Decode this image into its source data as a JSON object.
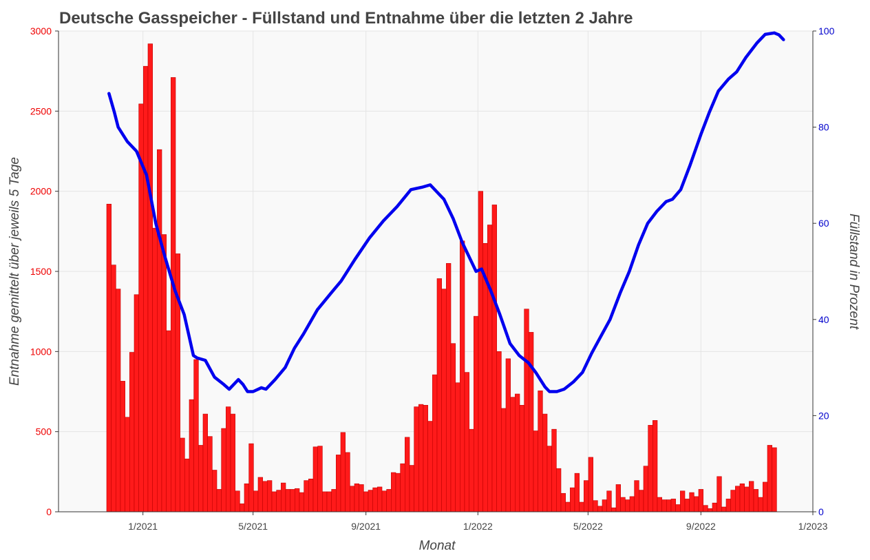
{
  "chart_data": {
    "type": "bar+line",
    "title": "Deutsche Gasspeicher - Füllstand und Entnahme über die letzten 2 Jahre",
    "xlabel": "Monat",
    "ylabel_left": "Entnahme gemittelt über jeweils 5 Tage",
    "ylabel_right": "Füllstand in Prozent",
    "x_range": [
      "2020-10-01",
      "2023-01-01"
    ],
    "x_ticks": [
      "1/2021",
      "5/2021",
      "9/2021",
      "1/2022",
      "5/2022",
      "9/2022",
      "1/2023"
    ],
    "ylim_left": [
      0,
      3000
    ],
    "y_ticks_left": [
      "0",
      "500",
      "1000",
      "1500",
      "2000",
      "2500",
      "3000"
    ],
    "ylim_right": [
      0,
      100
    ],
    "y_ticks_right": [
      "0",
      "20",
      "40",
      "60",
      "80",
      "100"
    ],
    "grid": true,
    "colors": {
      "bars": "#ff1a1a",
      "line": "#0000ee",
      "left_axis": "#ee0000",
      "right_axis": "#0000cc",
      "plot_bg": "#f9f9f9",
      "grid": "#e4e4e4",
      "text": "#444444"
    },
    "bar_series": {
      "start_date": "2020-11-25",
      "period_days": 5,
      "values": [
        1920,
        1540,
        1390,
        815,
        590,
        995,
        1355,
        2545,
        2780,
        2920,
        1770,
        2260,
        1730,
        1130,
        2710,
        1610,
        460,
        330,
        700,
        950,
        415,
        610,
        470,
        260,
        140,
        520,
        655,
        610,
        130,
        50,
        175,
        425,
        130,
        215,
        190,
        195,
        125,
        135,
        180,
        140,
        140,
        145,
        120,
        195,
        205,
        405,
        410,
        125,
        125,
        140,
        355,
        495,
        370,
        160,
        175,
        170,
        125,
        135,
        150,
        155,
        130,
        140,
        245,
        240,
        300,
        465,
        290,
        655,
        670,
        665,
        565,
        855,
        1455,
        1390,
        1550,
        1050,
        805,
        1690,
        870,
        515,
        1220,
        2000,
        1675,
        1790,
        1915,
        1000,
        645,
        955,
        715,
        735,
        665,
        1265,
        1120,
        505,
        755,
        610,
        410,
        515,
        270,
        115,
        60,
        150,
        240,
        60,
        195,
        340,
        70,
        35,
        75,
        130,
        25,
        170,
        90,
        75,
        95,
        195,
        135,
        285,
        540,
        570,
        90,
        75,
        75,
        80,
        45,
        130,
        80,
        120,
        95,
        140,
        40,
        20,
        55,
        220,
        30,
        80,
        135,
        160,
        175,
        155,
        190,
        140,
        90,
        185,
        415,
        400
      ]
    },
    "line_series": {
      "points": [
        [
          "2020-11-25",
          87
        ],
        [
          "2020-12-01",
          83
        ],
        [
          "2020-12-05",
          80
        ],
        [
          "2020-12-15",
          77
        ],
        [
          "2020-12-25",
          75
        ],
        [
          "2021-01-05",
          70
        ],
        [
          "2021-01-15",
          60
        ],
        [
          "2021-01-25",
          53
        ],
        [
          "2021-02-05",
          46
        ],
        [
          "2021-02-15",
          41
        ],
        [
          "2021-02-25",
          32.5
        ],
        [
          "2021-03-01",
          32
        ],
        [
          "2021-03-10",
          31.5
        ],
        [
          "2021-03-20",
          28
        ],
        [
          "2021-03-30",
          26.5
        ],
        [
          "2021-04-05",
          25.5
        ],
        [
          "2021-04-15",
          27.5
        ],
        [
          "2021-04-20",
          26.5
        ],
        [
          "2021-04-25",
          25
        ],
        [
          "2021-05-01",
          25
        ],
        [
          "2021-05-10",
          25.8
        ],
        [
          "2021-05-15",
          25.5
        ],
        [
          "2021-05-25",
          27.5
        ],
        [
          "2021-06-05",
          30
        ],
        [
          "2021-06-15",
          34
        ],
        [
          "2021-06-25",
          37
        ],
        [
          "2021-07-10",
          42
        ],
        [
          "2021-07-25",
          45.5
        ],
        [
          "2021-08-05",
          48
        ],
        [
          "2021-08-20",
          52.5
        ],
        [
          "2021-09-05",
          57
        ],
        [
          "2021-09-20",
          60.5
        ],
        [
          "2021-10-05",
          63.5
        ],
        [
          "2021-10-20",
          67
        ],
        [
          "2021-11-01",
          67.5
        ],
        [
          "2021-11-10",
          68
        ],
        [
          "2021-11-15",
          67
        ],
        [
          "2021-11-25",
          65
        ],
        [
          "2021-12-05",
          61
        ],
        [
          "2021-12-15",
          56
        ],
        [
          "2021-12-25",
          52
        ],
        [
          "2021-12-30",
          50
        ],
        [
          "2022-01-05",
          50.5
        ],
        [
          "2022-01-15",
          46
        ],
        [
          "2022-01-25",
          41
        ],
        [
          "2022-02-05",
          35
        ],
        [
          "2022-02-15",
          32.5
        ],
        [
          "2022-02-25",
          31
        ],
        [
          "2022-03-05",
          29
        ],
        [
          "2022-03-15",
          26
        ],
        [
          "2022-03-20",
          25
        ],
        [
          "2022-03-28",
          25
        ],
        [
          "2022-04-05",
          25.5
        ],
        [
          "2022-04-15",
          27
        ],
        [
          "2022-04-25",
          29
        ],
        [
          "2022-05-05",
          33
        ],
        [
          "2022-05-15",
          36.5
        ],
        [
          "2022-05-25",
          40
        ],
        [
          "2022-06-05",
          45.5
        ],
        [
          "2022-06-15",
          50
        ],
        [
          "2022-06-25",
          55.5
        ],
        [
          "2022-07-05",
          60
        ],
        [
          "2022-07-15",
          62.5
        ],
        [
          "2022-07-25",
          64.5
        ],
        [
          "2022-08-01",
          65
        ],
        [
          "2022-08-10",
          67
        ],
        [
          "2022-08-20",
          72
        ],
        [
          "2022-09-01",
          78.5
        ],
        [
          "2022-09-10",
          83
        ],
        [
          "2022-09-20",
          87.5
        ],
        [
          "2022-10-01",
          90
        ],
        [
          "2022-10-10",
          91.5
        ],
        [
          "2022-10-20",
          94.5
        ],
        [
          "2022-11-01",
          97.5
        ],
        [
          "2022-11-10",
          99.3
        ],
        [
          "2022-11-20",
          99.6
        ],
        [
          "2022-11-25",
          99.2
        ],
        [
          "2022-11-30",
          98.2
        ]
      ]
    }
  }
}
